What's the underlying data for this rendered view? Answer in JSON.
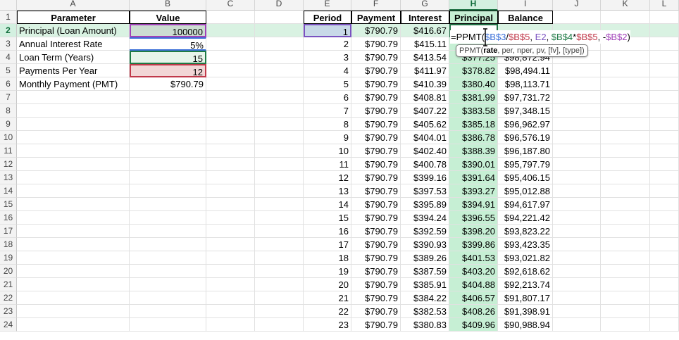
{
  "columns": [
    "A",
    "B",
    "C",
    "D",
    "E",
    "F",
    "G",
    "H",
    "I",
    "J",
    "K",
    "L"
  ],
  "row_numbers": [
    "1",
    "2",
    "3",
    "4",
    "5",
    "6",
    "7",
    "8",
    "9",
    "10",
    "11",
    "12",
    "13",
    "14",
    "15",
    "16",
    "17",
    "18",
    "19",
    "20",
    "21",
    "22",
    "23",
    "24"
  ],
  "params": {
    "headers": {
      "parameter": "Parameter",
      "value": "Value"
    },
    "rows": [
      {
        "label": "Principal (Loan Amount)",
        "value": "100000"
      },
      {
        "label": "Annual Interest Rate",
        "value": "5%"
      },
      {
        "label": "Loan Term (Years)",
        "value": "15"
      },
      {
        "label": "Payments Per Year",
        "value": "12"
      },
      {
        "label": "Monthly Payment (PMT)",
        "value": "$790.79"
      }
    ]
  },
  "schedule": {
    "headers": {
      "period": "Period",
      "payment": "Payment",
      "interest": "Interest",
      "principal": "Principal",
      "balance": "Balance"
    },
    "rows": [
      {
        "period": "1",
        "payment": "$790.79",
        "interest": "$416.67",
        "principal": "",
        "balance": ""
      },
      {
        "period": "2",
        "payment": "$790.79",
        "interest": "$415.11",
        "principal": "",
        "balance": ""
      },
      {
        "period": "3",
        "payment": "$790.79",
        "interest": "$413.54",
        "principal": "$377.25",
        "balance": "$98,872.94"
      },
      {
        "period": "4",
        "payment": "$790.79",
        "interest": "$411.97",
        "principal": "$378.82",
        "balance": "$98,494.11"
      },
      {
        "period": "5",
        "payment": "$790.79",
        "interest": "$410.39",
        "principal": "$380.40",
        "balance": "$98,113.71"
      },
      {
        "period": "6",
        "payment": "$790.79",
        "interest": "$408.81",
        "principal": "$381.99",
        "balance": "$97,731.72"
      },
      {
        "period": "7",
        "payment": "$790.79",
        "interest": "$407.22",
        "principal": "$383.58",
        "balance": "$97,348.15"
      },
      {
        "period": "8",
        "payment": "$790.79",
        "interest": "$405.62",
        "principal": "$385.18",
        "balance": "$96,962.97"
      },
      {
        "period": "9",
        "payment": "$790.79",
        "interest": "$404.01",
        "principal": "$386.78",
        "balance": "$96,576.19"
      },
      {
        "period": "10",
        "payment": "$790.79",
        "interest": "$402.40",
        "principal": "$388.39",
        "balance": "$96,187.80"
      },
      {
        "period": "11",
        "payment": "$790.79",
        "interest": "$400.78",
        "principal": "$390.01",
        "balance": "$95,797.79"
      },
      {
        "period": "12",
        "payment": "$790.79",
        "interest": "$399.16",
        "principal": "$391.64",
        "balance": "$95,406.15"
      },
      {
        "period": "13",
        "payment": "$790.79",
        "interest": "$397.53",
        "principal": "$393.27",
        "balance": "$95,012.88"
      },
      {
        "period": "14",
        "payment": "$790.79",
        "interest": "$395.89",
        "principal": "$394.91",
        "balance": "$94,617.97"
      },
      {
        "period": "15",
        "payment": "$790.79",
        "interest": "$394.24",
        "principal": "$396.55",
        "balance": "$94,221.42"
      },
      {
        "period": "16",
        "payment": "$790.79",
        "interest": "$392.59",
        "principal": "$398.20",
        "balance": "$93,823.22"
      },
      {
        "period": "17",
        "payment": "$790.79",
        "interest": "$390.93",
        "principal": "$399.86",
        "balance": "$93,423.35"
      },
      {
        "period": "18",
        "payment": "$790.79",
        "interest": "$389.26",
        "principal": "$401.53",
        "balance": "$93,021.82"
      },
      {
        "period": "19",
        "payment": "$790.79",
        "interest": "$387.59",
        "principal": "$403.20",
        "balance": "$92,618.62"
      },
      {
        "period": "20",
        "payment": "$790.79",
        "interest": "$385.91",
        "principal": "$404.88",
        "balance": "$92,213.74"
      },
      {
        "period": "21",
        "payment": "$790.79",
        "interest": "$384.22",
        "principal": "$406.57",
        "balance": "$91,807.17"
      },
      {
        "period": "22",
        "payment": "$790.79",
        "interest": "$382.53",
        "principal": "$408.26",
        "balance": "$91,398.91"
      },
      {
        "period": "23",
        "payment": "$790.79",
        "interest": "$380.83",
        "principal": "$409.96",
        "balance": "$90,988.94"
      }
    ]
  },
  "active_cell": {
    "formula_parts": [
      {
        "text": "=PPMT(",
        "color": "#000000"
      },
      {
        "text": "$B$3",
        "color": "#3a6fd8"
      },
      {
        "text": "/",
        "color": "#000000"
      },
      {
        "text": "$B$5",
        "color": "#c0394a"
      },
      {
        "text": ", ",
        "color": "#000000"
      },
      {
        "text": "E2",
        "color": "#7a52c0"
      },
      {
        "text": ", ",
        "color": "#000000"
      },
      {
        "text": "$B$4",
        "color": "#1e7a45"
      },
      {
        "text": "*",
        "color": "#000000"
      },
      {
        "text": "$B$5",
        "color": "#c0394a"
      },
      {
        "text": ", -",
        "color": "#000000"
      },
      {
        "text": "$B$2",
        "color": "#a040b8"
      },
      {
        "text": ")",
        "color": "#000000"
      }
    ],
    "tooltip": {
      "func": "PPMT(",
      "current_arg": "rate",
      "rest": ", per, nper, pv, [fv], [type])"
    }
  },
  "colors": {
    "accent": "#217346",
    "selected_header_bg": "#d3f0e0",
    "column_band": "#c6efd4"
  }
}
